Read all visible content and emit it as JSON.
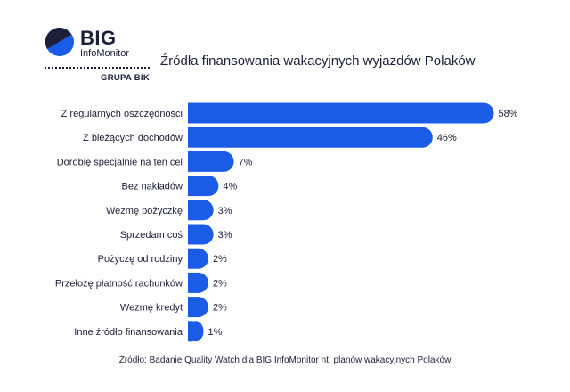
{
  "logo": {
    "big": "BIG",
    "info": "InfoMonitor",
    "grupa": "GRUPA BIK"
  },
  "title": "Źródła finansowania wakacyjnych wyjazdów Polaków",
  "footer": "Źródło: Badanie Quality Watch dla BIG InfoMonitor nt. planów wakacyjnych Polaków",
  "colors": {
    "bar": "#1b5ce6",
    "text": "#1c1f3a"
  },
  "chart_data": {
    "type": "bar",
    "orientation": "horizontal",
    "categories": [
      "Z regularnych oszczędności",
      "Z bieżących dochodów",
      "Dorobię specjalnie na ten cel",
      "Bez nakładów",
      "Wezmę pożyczkę",
      "Sprzedam coś",
      "Pożyczę od rodziny",
      "Przełożę płatność rachunków",
      "Wezmę kredyt",
      "Inne źródło finansowania"
    ],
    "values": [
      58,
      46,
      7,
      4,
      3,
      3,
      2,
      2,
      2,
      1
    ],
    "value_labels": [
      "58%",
      "46%",
      "7%",
      "4%",
      "3%",
      "3%",
      "2%",
      "2%",
      "2%",
      "1%"
    ],
    "title": "Źródła finansowania wakacyjnych wyjazdów Polaków",
    "xlim": [
      0,
      58
    ],
    "grid": false,
    "legend": "none"
  }
}
